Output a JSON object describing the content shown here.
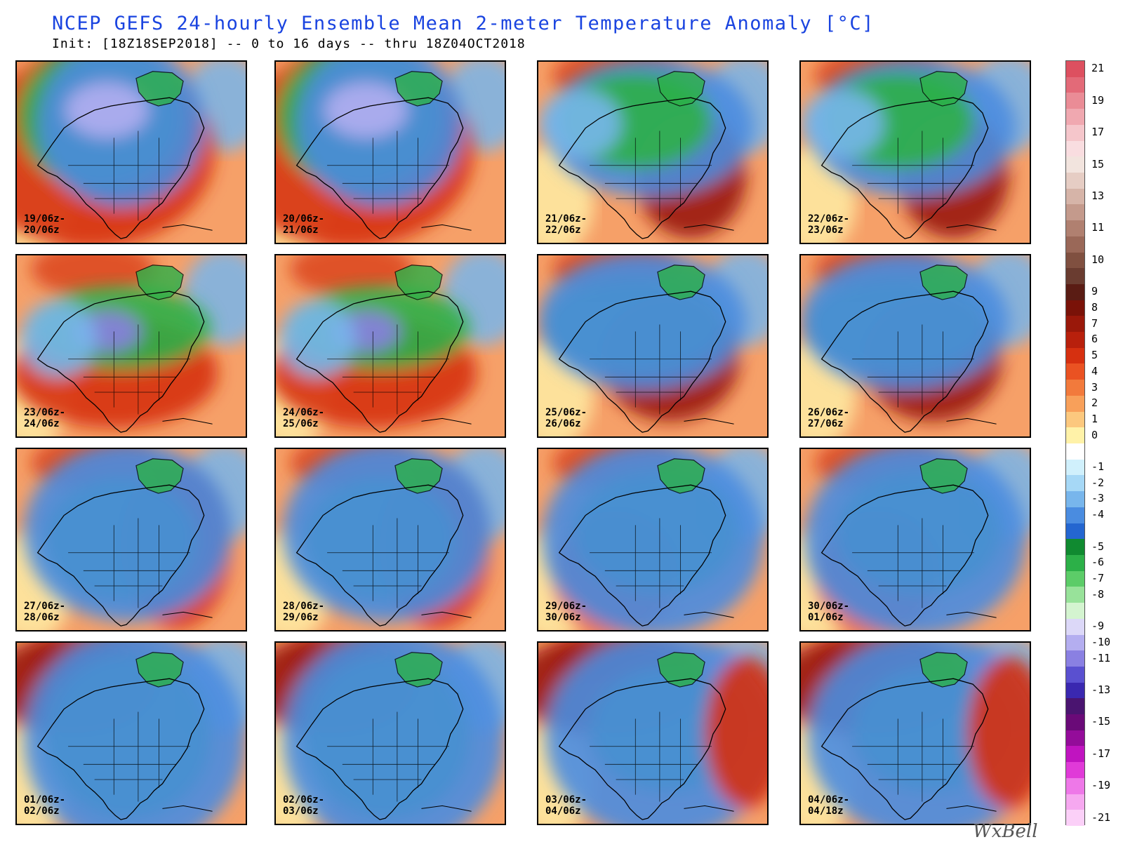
{
  "title": "NCEP GEFS 24-hourly Ensemble Mean 2-meter Temperature Anomaly [°C]",
  "subtitle": "Init: [18Z18SEP2018] -- 0 to 16 days -- thru 18Z04OCT2018",
  "brand": "WxBell",
  "panels": [
    {
      "line1": "19/06z-",
      "line2": "20/06z",
      "scenario": "A"
    },
    {
      "line1": "20/06z-",
      "line2": "21/06z",
      "scenario": "A"
    },
    {
      "line1": "21/06z-",
      "line2": "22/06z",
      "scenario": "B"
    },
    {
      "line1": "22/06z-",
      "line2": "23/06z",
      "scenario": "B"
    },
    {
      "line1": "23/06z-",
      "line2": "24/06z",
      "scenario": "C"
    },
    {
      "line1": "24/06z-",
      "line2": "25/06z",
      "scenario": "C"
    },
    {
      "line1": "25/06z-",
      "line2": "26/06z",
      "scenario": "D"
    },
    {
      "line1": "26/06z-",
      "line2": "27/06z",
      "scenario": "D"
    },
    {
      "line1": "27/06z-",
      "line2": "28/06z",
      "scenario": "E"
    },
    {
      "line1": "28/06z-",
      "line2": "29/06z",
      "scenario": "E"
    },
    {
      "line1": "29/06z-",
      "line2": "30/06z",
      "scenario": "F"
    },
    {
      "line1": "30/06z-",
      "line2": "01/06z",
      "scenario": "F"
    },
    {
      "line1": "01/06z-",
      "line2": "02/06z",
      "scenario": "G"
    },
    {
      "line1": "02/06z-",
      "line2": "03/06z",
      "scenario": "G"
    },
    {
      "line1": "03/06z-",
      "line2": "04/06z",
      "scenario": "H"
    },
    {
      "line1": "04/06z-",
      "line2": "04/18z",
      "scenario": "H"
    }
  ],
  "colorbar": [
    {
      "label": "21",
      "color": "#dd5060"
    },
    {
      "label": "",
      "color": "#e36a78"
    },
    {
      "label": "19",
      "color": "#ea8c96"
    },
    {
      "label": "",
      "color": "#f0a8b0"
    },
    {
      "label": "17",
      "color": "#f5c6cb"
    },
    {
      "label": "",
      "color": "#f9dde0"
    },
    {
      "label": "15",
      "color": "#f2e4de"
    },
    {
      "label": "",
      "color": "#e6cdc4"
    },
    {
      "label": "13",
      "color": "#d6b4a8"
    },
    {
      "label": "",
      "color": "#c49a8c"
    },
    {
      "label": "11",
      "color": "#b08070"
    },
    {
      "label": "",
      "color": "#9a6858"
    },
    {
      "label": "10",
      "color": "#805040"
    },
    {
      "label": "",
      "color": "#6a3c30"
    },
    {
      "label": "9",
      "color": "#5a1c14"
    },
    {
      "label": "8",
      "color": "#7a1208"
    },
    {
      "label": "7",
      "color": "#9a180a"
    },
    {
      "label": "6",
      "color": "#b8200c"
    },
    {
      "label": "5",
      "color": "#d63010"
    },
    {
      "label": "4",
      "color": "#ea5222"
    },
    {
      "label": "3",
      "color": "#f27a3c"
    },
    {
      "label": "2",
      "color": "#f8a05a"
    },
    {
      "label": "1",
      "color": "#fcc87e"
    },
    {
      "label": "0",
      "color": "#fff2a8"
    },
    {
      "label": "",
      "color": "#ffffff"
    },
    {
      "label": "-1",
      "color": "#d0f0fc"
    },
    {
      "label": "-2",
      "color": "#a6d8f6"
    },
    {
      "label": "-3",
      "color": "#78b6ec"
    },
    {
      "label": "-4",
      "color": "#4a8ce0"
    },
    {
      "label": "",
      "color": "#2466d0"
    },
    {
      "label": "-5",
      "color": "#108a30"
    },
    {
      "label": "-6",
      "color": "#2cb048"
    },
    {
      "label": "-7",
      "color": "#5ccc68"
    },
    {
      "label": "-8",
      "color": "#98e29a"
    },
    {
      "label": "",
      "color": "#d4f4d0"
    },
    {
      "label": "-9",
      "color": "#dcd8f8"
    },
    {
      "label": "-10",
      "color": "#b4aef0"
    },
    {
      "label": "-11",
      "color": "#8a80e2"
    },
    {
      "label": "",
      "color": "#5a50d0"
    },
    {
      "label": "-13",
      "color": "#3a28b0"
    },
    {
      "label": "",
      "color": "#4a1470"
    },
    {
      "label": "-15",
      "color": "#6a0a78"
    },
    {
      "label": "",
      "color": "#940c9a"
    },
    {
      "label": "-17",
      "color": "#c014c0"
    },
    {
      "label": "",
      "color": "#e03ad8"
    },
    {
      "label": "-19",
      "color": "#ee78e8"
    },
    {
      "label": "",
      "color": "#f6a8f0"
    },
    {
      "label": "-21",
      "color": "#fbd0f8"
    }
  ]
}
